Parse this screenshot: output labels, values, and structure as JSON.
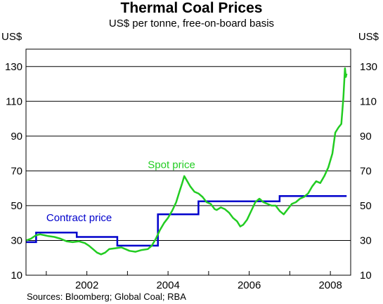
{
  "chart_data": {
    "type": "line",
    "title": "Thermal Coal Prices",
    "subtitle": "US$ per tonne, free-on-board basis",
    "ylabel_left": "US$",
    "ylabel_right": "US$",
    "ylim": [
      10,
      140
    ],
    "yticks": [
      10,
      30,
      50,
      70,
      90,
      110,
      130
    ],
    "xlim": [
      2000.5,
      2008.5
    ],
    "xticks": [
      2002,
      2004,
      2006,
      2008
    ],
    "xtick_minor": [
      2001,
      2002,
      2003,
      2004,
      2005,
      2006,
      2007,
      2008
    ],
    "grid": "horizontal",
    "source": "Sources: Bloomberg; Global Coal; RBA",
    "series": [
      {
        "name": "Spot price",
        "color": "#22cc22",
        "points": [
          [
            2000.5,
            30
          ],
          [
            2000.62,
            31
          ],
          [
            2000.75,
            33
          ],
          [
            2000.85,
            33.5
          ],
          [
            2000.95,
            33
          ],
          [
            2001.05,
            32.5
          ],
          [
            2001.2,
            32
          ],
          [
            2001.35,
            31
          ],
          [
            2001.5,
            29.5
          ],
          [
            2001.65,
            29
          ],
          [
            2001.8,
            29.5
          ],
          [
            2001.95,
            28.5
          ],
          [
            2002.05,
            27
          ],
          [
            2002.15,
            25
          ],
          [
            2002.25,
            23
          ],
          [
            2002.35,
            22
          ],
          [
            2002.45,
            23
          ],
          [
            2002.55,
            25
          ],
          [
            2002.7,
            25.5
          ],
          [
            2002.85,
            26
          ],
          [
            2002.95,
            25
          ],
          [
            2003.05,
            24
          ],
          [
            2003.2,
            23.5
          ],
          [
            2003.35,
            24.5
          ],
          [
            2003.5,
            25
          ],
          [
            2003.6,
            27
          ],
          [
            2003.7,
            31
          ],
          [
            2003.8,
            36
          ],
          [
            2003.9,
            40
          ],
          [
            2004.0,
            43
          ],
          [
            2004.1,
            47
          ],
          [
            2004.2,
            52
          ],
          [
            2004.28,
            58
          ],
          [
            2004.35,
            63
          ],
          [
            2004.4,
            67
          ],
          [
            2004.45,
            65
          ],
          [
            2004.55,
            61
          ],
          [
            2004.65,
            58
          ],
          [
            2004.75,
            57
          ],
          [
            2004.85,
            55
          ],
          [
            2004.95,
            52
          ],
          [
            2005.05,
            51
          ],
          [
            2005.15,
            48
          ],
          [
            2005.2,
            47.5
          ],
          [
            2005.3,
            49
          ],
          [
            2005.4,
            48
          ],
          [
            2005.5,
            46
          ],
          [
            2005.6,
            43
          ],
          [
            2005.7,
            41
          ],
          [
            2005.78,
            38
          ],
          [
            2005.85,
            39
          ],
          [
            2005.95,
            42
          ],
          [
            2006.05,
            47
          ],
          [
            2006.15,
            52
          ],
          [
            2006.25,
            54
          ],
          [
            2006.35,
            52
          ],
          [
            2006.45,
            51
          ],
          [
            2006.55,
            50
          ],
          [
            2006.65,
            50
          ],
          [
            2006.75,
            47
          ],
          [
            2006.85,
            45
          ],
          [
            2006.95,
            48
          ],
          [
            2007.05,
            51
          ],
          [
            2007.15,
            52
          ],
          [
            2007.25,
            54
          ],
          [
            2007.35,
            55
          ],
          [
            2007.45,
            57
          ],
          [
            2007.55,
            61
          ],
          [
            2007.65,
            64
          ],
          [
            2007.75,
            63
          ],
          [
            2007.85,
            67
          ],
          [
            2007.95,
            72
          ],
          [
            2008.05,
            80
          ],
          [
            2008.12,
            92
          ],
          [
            2008.2,
            95
          ],
          [
            2008.27,
            97
          ],
          [
            2008.32,
            112
          ],
          [
            2008.36,
            129
          ],
          [
            2008.38,
            124
          ],
          [
            2008.4,
            126
          ]
        ]
      },
      {
        "name": "Contract price",
        "color": "#0000cc",
        "steps": [
          [
            2000.5,
            29
          ],
          [
            2000.75,
            29
          ],
          [
            2000.75,
            34.5
          ],
          [
            2001.75,
            34.5
          ],
          [
            2001.75,
            32
          ],
          [
            2002.75,
            32
          ],
          [
            2002.75,
            27
          ],
          [
            2003.75,
            27
          ],
          [
            2003.75,
            45
          ],
          [
            2004.75,
            45
          ],
          [
            2004.75,
            52.5
          ],
          [
            2006.75,
            52.5
          ],
          [
            2006.75,
            55.5
          ],
          [
            2008.4,
            55.5
          ]
        ]
      }
    ],
    "annotations": [
      {
        "text": "Spot price",
        "series": "Spot price"
      },
      {
        "text": "Contract price",
        "series": "Contract price"
      }
    ]
  }
}
